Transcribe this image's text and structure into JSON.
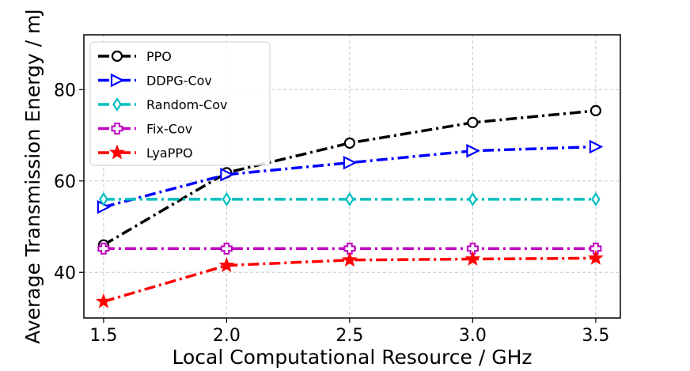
{
  "chart_data": {
    "type": "line",
    "title": "",
    "xlabel": "Local Computational Resource / GHz",
    "ylabel": "Average Transmission Energy / mJ",
    "x": [
      1.5,
      2.0,
      2.5,
      3.0,
      3.5
    ],
    "xticks": [
      "1.5",
      "2.0",
      "2.5",
      "3.0",
      "3.5"
    ],
    "yticks": [
      "40",
      "60",
      "80"
    ],
    "xlim": [
      1.42,
      3.6
    ],
    "ylim": [
      30,
      92
    ],
    "grid": true,
    "legend_position": "top-left",
    "series": [
      {
        "name": "PPO",
        "values": [
          46.0,
          61.8,
          68.3,
          72.8,
          75.4
        ],
        "color": "#000000",
        "marker": "circle"
      },
      {
        "name": "DDPG-Cov",
        "values": [
          54.3,
          61.4,
          64.0,
          66.6,
          67.5
        ],
        "color": "#0000ff",
        "marker": "triangle-right"
      },
      {
        "name": "Random-Cov",
        "values": [
          56.0,
          56.0,
          56.0,
          56.0,
          56.0
        ],
        "color": "#00bfbf",
        "marker": "thin-diamond"
      },
      {
        "name": "Fix-Cov",
        "values": [
          45.2,
          45.2,
          45.2,
          45.2,
          45.2
        ],
        "color": "#bf00bf",
        "marker": "plus"
      },
      {
        "name": "LyaPPO",
        "values": [
          33.6,
          41.5,
          42.7,
          42.9,
          43.1
        ],
        "color": "#ff0000",
        "marker": "star"
      }
    ]
  }
}
